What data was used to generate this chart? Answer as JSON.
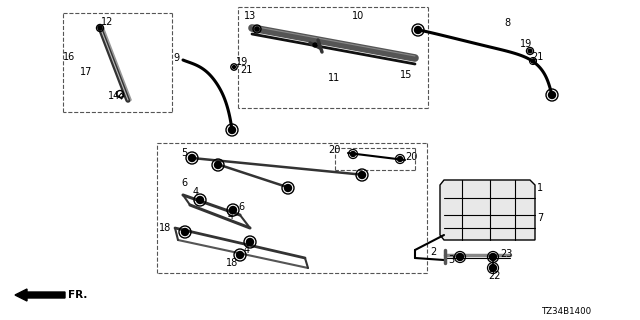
{
  "bg": "#ffffff",
  "part_code": "TZ34B1400",
  "boxes": {
    "blade_small": [
      63,
      13,
      172,
      112
    ],
    "blade_main": [
      238,
      7,
      428,
      108
    ],
    "linkage": [
      157,
      143,
      427,
      273
    ]
  },
  "colors": {
    "line": "#000000",
    "dash": "#555555",
    "gray": "#aaaaaa",
    "darkgray": "#444444"
  }
}
